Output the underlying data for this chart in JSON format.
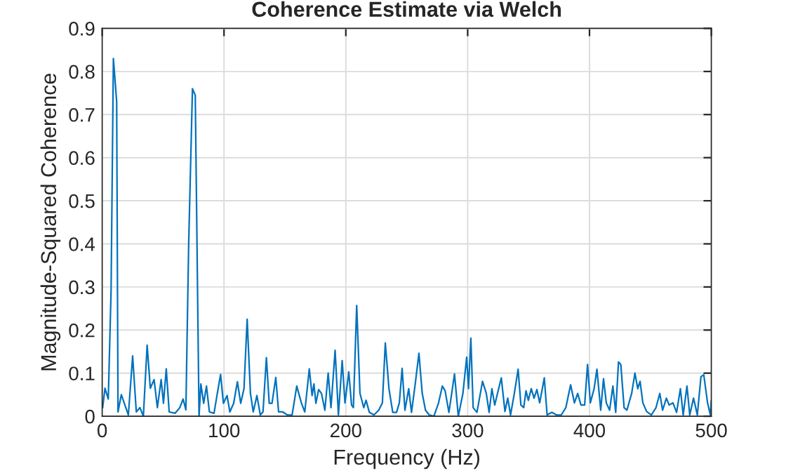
{
  "chart_data": {
    "type": "line",
    "title": "Coherence Estimate via Welch",
    "xlabel": "Frequency (Hz)",
    "ylabel": "Magnitude-Squared Coherence",
    "xlim": [
      0,
      500
    ],
    "xticks": [
      0,
      100,
      200,
      300,
      400,
      500
    ],
    "ylim": [
      0,
      0.9
    ],
    "yticks": [
      0,
      0.1,
      0.2,
      0.3,
      0.4,
      0.5,
      0.6,
      0.7,
      0.8,
      0.9
    ],
    "grid": true,
    "legend": false,
    "marker": "none",
    "line_style": "solid",
    "series": [
      {
        "color": "#0072bd",
        "x": [
          0.4,
          2.3,
          5,
          7.3,
          9.2,
          11.9,
          13,
          15.7,
          18.8,
          21.5,
          25,
          28,
          31,
          33.8,
          36.9,
          39.5,
          42.6,
          45.3,
          48.4,
          50.3,
          52.6,
          55,
          59.9,
          63.7,
          66.4,
          68.7,
          71,
          74.1,
          76.4,
          79.5,
          81,
          83.3,
          85.6,
          88,
          91.8,
          94.5,
          97.2,
          99.5,
          102.5,
          104.8,
          107.9,
          111,
          113.7,
          116.4,
          119,
          121.7,
          124,
          127,
          129.8,
          132,
          134.8,
          137.1,
          139.4,
          142.5,
          144.8,
          148.2,
          152,
          155.9,
          159.7,
          163.6,
          166.3,
          170,
          172.3,
          173.8,
          175.4,
          177.7,
          180,
          182.8,
          185.5,
          187.8,
          191.2,
          193.9,
          197,
          199.3,
          202.4,
          204.7,
          206.2,
          208.9,
          211.6,
          214.7,
          216.6,
          219.3,
          223.1,
          227,
          230,
          232.4,
          235.4,
          238.5,
          241.6,
          243.9,
          246.2,
          248.5,
          251.6,
          253.9,
          257,
          260,
          262.7,
          265.4,
          268.4,
          272.3,
          276.1,
          279.2,
          281.5,
          284.6,
          286.9,
          289.2,
          292.3,
          296.1,
          299.2,
          300.7,
          302.6,
          304.5,
          307.6,
          312.2,
          315.3,
          317.6,
          319.9,
          322.2,
          324.5,
          327.6,
          330.6,
          332.9,
          335.2,
          338.3,
          341.4,
          343.7,
          346,
          347.9,
          349.8,
          352.2,
          354.5,
          356.8,
          359.1,
          362.9,
          365.2,
          369.1,
          372.9,
          376.8,
          380.6,
          384.5,
          387.6,
          390.3,
          393,
          396,
          398.4,
          400.7,
          403.8,
          406.1,
          409.2,
          411.5,
          413.8,
          416.5,
          419.2,
          421.5,
          423.8,
          425.7,
          428.4,
          430.7,
          434.6,
          437.3,
          439.6,
          441.5,
          443.8,
          446.9,
          450.8,
          454.6,
          457.7,
          460,
          463.1,
          465.4,
          468.5,
          471.5,
          474.6,
          476.9,
          480,
          482.3,
          485.4,
          488.5,
          491.5,
          493.8,
          496.9,
          499.2,
          500
        ],
        "values": [
          0.02,
          0.065,
          0.04,
          0.29,
          0.83,
          0.73,
          0.01,
          0.05,
          0.025,
          0.003,
          0.14,
          0.01,
          0.02,
          0,
          0.165,
          0.065,
          0.085,
          0.02,
          0.085,
          0.03,
          0.11,
          0.01,
          0.007,
          0.02,
          0.04,
          0.015,
          0.4,
          0.76,
          0.745,
          0,
          0.075,
          0.03,
          0.07,
          0.01,
          0.007,
          0.053,
          0.097,
          0.03,
          0.048,
          0.01,
          0.03,
          0.08,
          0.03,
          0.064,
          0.225,
          0.053,
          0.01,
          0.048,
          0.003,
          0.01,
          0.136,
          0.03,
          0.03,
          0.09,
          0.01,
          0.01,
          0.003,
          0.003,
          0.07,
          0.03,
          0.01,
          0.11,
          0.048,
          0.075,
          0.03,
          0.062,
          0.053,
          0.014,
          0.1,
          0.02,
          0.153,
          0.003,
          0.129,
          0.031,
          0.103,
          0.026,
          0.02,
          0.257,
          0.053,
          0.02,
          0.037,
          0.009,
          0.003,
          0.014,
          0.031,
          0.17,
          0.064,
          0.009,
          0.009,
          0.031,
          0.111,
          0.014,
          0.064,
          0.009,
          0.076,
          0.146,
          0.053,
          0.014,
          0.003,
          0,
          0.031,
          0.07,
          0.059,
          0.009,
          0.053,
          0.098,
          0,
          0.053,
          0.137,
          0.064,
          0.181,
          0.02,
          0.009,
          0.081,
          0.053,
          0.009,
          0.064,
          0.026,
          0.053,
          0.089,
          0.011,
          0.042,
          0.003,
          0.053,
          0.109,
          0.026,
          0.02,
          0.059,
          0.037,
          0.064,
          0.042,
          0.062,
          0.031,
          0.089,
          0.003,
          0.009,
          0.003,
          0.003,
          0.02,
          0.073,
          0.031,
          0.053,
          0.026,
          0.026,
          0.12,
          0.031,
          0.064,
          0.109,
          0.014,
          0.087,
          0.031,
          0.014,
          0.07,
          0.009,
          0.126,
          0.12,
          0.02,
          0.014,
          0.053,
          0.1,
          0.064,
          0.081,
          0.031,
          0.011,
          0.003,
          0.02,
          0.053,
          0.014,
          0.042,
          0.026,
          0.031,
          0.009,
          0.064,
          0.003,
          0.07,
          0.003,
          0.042,
          0.003,
          0.092,
          0.096,
          0.031,
          0.003,
          0.037
        ]
      }
    ]
  }
}
